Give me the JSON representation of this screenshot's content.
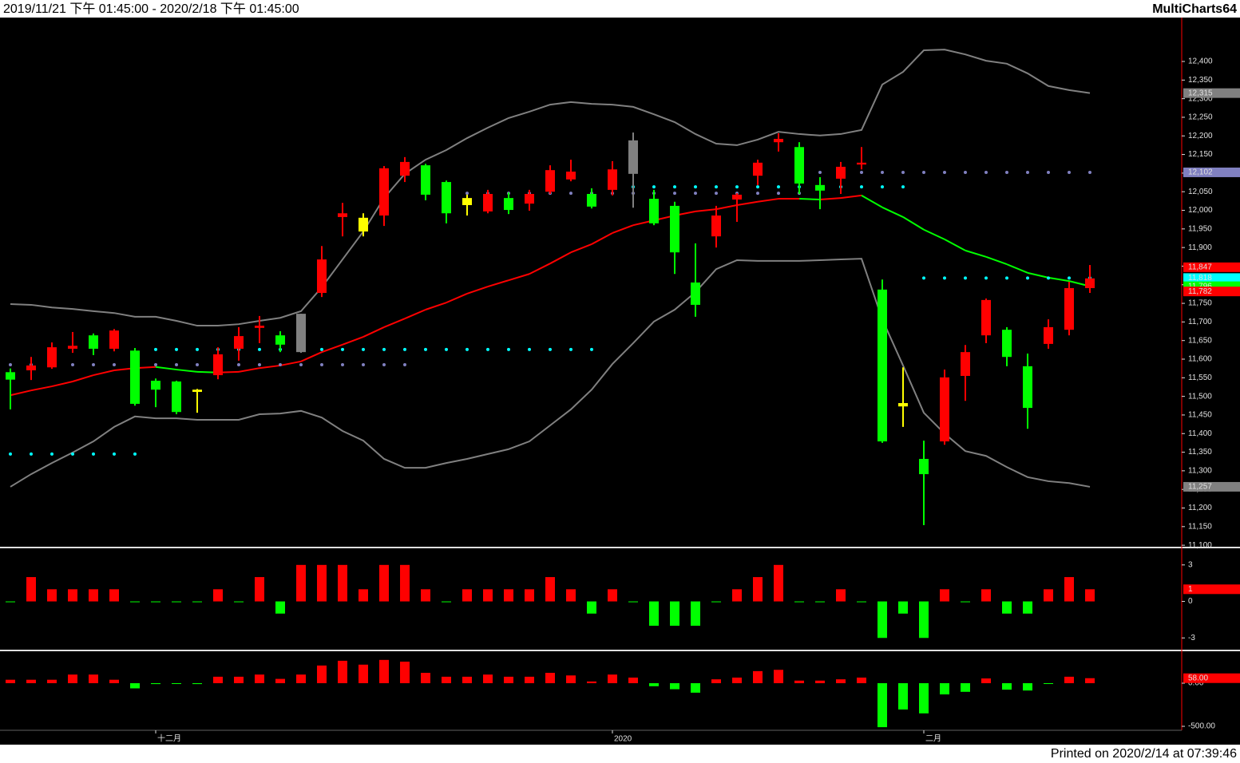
{
  "header": {
    "range": "2019/11/21 下午 01:45:00 - 2020/2/18 下午 01:45:00",
    "brand": "MultiCharts64"
  },
  "footer": {
    "printed": "Printed on 2020/2/14 at 07:39:46"
  },
  "chart_data": [
    {
      "type": "candlestick",
      "categories": [
        null,
        null,
        null,
        null,
        null,
        null,
        null,
        "十二月",
        null,
        null,
        null,
        null,
        null,
        null,
        null,
        null,
        null,
        null,
        null,
        null,
        null,
        null,
        null,
        null,
        null,
        null,
        null,
        null,
        null,
        "2020",
        null,
        null,
        null,
        null,
        null,
        null,
        null,
        null,
        null,
        null,
        null,
        null,
        null,
        null,
        "二月",
        null,
        null,
        null,
        null,
        null,
        null,
        null,
        null
      ],
      "open": [
        11565,
        11570,
        11578,
        11628,
        11664,
        11628,
        11623,
        11542,
        11540,
        11518,
        11557,
        11628,
        11684,
        11664,
        11722,
        11778,
        11982,
        11980,
        11986,
        12093,
        12121,
        12076,
        12033,
        11997,
        12033,
        12018,
        12050,
        12083,
        12044,
        12055,
        12188,
        12031,
        12012,
        11806,
        11930,
        12029,
        12093,
        12183,
        12170,
        12068,
        12085,
        12123,
        11787,
        11482,
        11332,
        11379,
        11555,
        11664,
        11679,
        11581,
        11641,
        11679,
        11791
      ],
      "high": [
        11575,
        11606,
        11645,
        11673,
        11669,
        11681,
        11630,
        11548,
        11542,
        11520,
        11632,
        11686,
        11716,
        11675,
        11722,
        11904,
        12020,
        11992,
        12119,
        12143,
        12125,
        12080,
        12042,
        12055,
        12048,
        12055,
        12121,
        12136,
        12059,
        12132,
        12209,
        12055,
        12023,
        11911,
        12012,
        12046,
        12136,
        12207,
        12183,
        12089,
        12130,
        12170,
        11814,
        11578,
        11381,
        11572,
        11638,
        11763,
        11686,
        11615,
        11707,
        11808,
        11853
      ],
      "low": [
        11465,
        11544,
        11574,
        11617,
        11611,
        11621,
        11475,
        11471,
        11452,
        11456,
        11546,
        11596,
        11643,
        11619,
        11617,
        11767,
        11930,
        11930,
        11958,
        12076,
        12027,
        11965,
        11986,
        11992,
        11990,
        11999,
        12044,
        12078,
        12005,
        12040,
        12007,
        11960,
        11829,
        11714,
        11900,
        11969,
        12068,
        12158,
        12044,
        12003,
        12044,
        12110,
        11375,
        11418,
        11154,
        11370,
        11488,
        11643,
        11581,
        11413,
        11628,
        11664,
        11778
      ],
      "close": [
        11545,
        11583,
        11632,
        11636,
        11628,
        11677,
        11480,
        11518,
        11458,
        11512,
        11613,
        11662,
        11690,
        11639,
        11619,
        11868,
        11992,
        11943,
        12113,
        12130,
        12042,
        11992,
        12014,
        12044,
        12001,
        12044,
        12108,
        12104,
        12010,
        12110,
        12098,
        11965,
        11887,
        11746,
        11986,
        12042,
        12128,
        12192,
        12072,
        12053,
        12117,
        12128,
        11379,
        11473,
        11291,
        11551,
        11619,
        11759,
        11606,
        11469,
        11686,
        11791,
        11817
      ],
      "candle_colors": [
        "#00ff00",
        "#ff0000",
        "#ff0000",
        "#ff0000",
        "#00ff00",
        "#ff0000",
        "#00ff00",
        "#00ff00",
        "#00ff00",
        "#ffff00",
        "#ff0000",
        "#ff0000",
        "#ff0000",
        "#00ff00",
        "#808080",
        "#ff0000",
        "#ff0000",
        "#ffff00",
        "#ff0000",
        "#ff0000",
        "#00ff00",
        "#00ff00",
        "#ffff00",
        "#ff0000",
        "#00ff00",
        "#ff0000",
        "#ff0000",
        "#ff0000",
        "#00ff00",
        "#ff0000",
        "#808080",
        "#00ff00",
        "#00ff00",
        "#00ff00",
        "#ff0000",
        "#ff0000",
        "#ff0000",
        "#ff0000",
        "#00ff00",
        "#00ff00",
        "#ff0000",
        "#ff0000",
        "#00ff00",
        "#ffff00",
        "#00ff00",
        "#ff0000",
        "#ff0000",
        "#ff0000",
        "#00ff00",
        "#00ff00",
        "#ff0000",
        "#ff0000",
        "#ff0000"
      ],
      "bands": [
        {
          "color": "#808080",
          "values": [
            11748,
            11746,
            11739,
            11735,
            11729,
            11724,
            11714,
            11714,
            11703,
            11690,
            11690,
            11694,
            11703,
            11711,
            11729,
            11793,
            11868,
            11943,
            12033,
            12098,
            12136,
            12162,
            12194,
            12222,
            12248,
            12265,
            12284,
            12291,
            12286,
            12284,
            12278,
            12258,
            12237,
            12205,
            12179,
            12175,
            12190,
            12211,
            12205,
            12201,
            12205,
            12216,
            12338,
            12372,
            12430,
            12432,
            12419,
            12402,
            12394,
            12368,
            12334,
            12323,
            12315
          ]
        },
        {
          "color": "#808080",
          "values": [
            11257,
            11291,
            11321,
            11349,
            11379,
            11418,
            11446,
            11441,
            11441,
            11437,
            11437,
            11437,
            11452,
            11454,
            11461,
            11443,
            11407,
            11381,
            11332,
            11308,
            11308,
            11321,
            11332,
            11345,
            11358,
            11379,
            11422,
            11465,
            11518,
            11587,
            11643,
            11701,
            11733,
            11780,
            11842,
            11866,
            11864,
            11864,
            11864,
            11866,
            11868,
            11870,
            11707,
            11583,
            11456,
            11400,
            11353,
            11340,
            11310,
            11283,
            11272,
            11267,
            11257
          ]
        }
      ],
      "ma": {
        "rising_color": "#ff0000",
        "falling_color": "#00ff00",
        "values": [
          11503,
          11516,
          11527,
          11540,
          11557,
          11570,
          11576,
          11579,
          11572,
          11566,
          11564,
          11566,
          11576,
          11583,
          11594,
          11619,
          11639,
          11660,
          11686,
          11709,
          11733,
          11752,
          11776,
          11795,
          11812,
          11829,
          11857,
          11887,
          11909,
          11939,
          11960,
          11973,
          11986,
          11997,
          12003,
          12014,
          12023,
          12031,
          12031,
          12029,
          12033,
          12040,
          12008,
          11982,
          11948,
          11922,
          11892,
          11875,
          11855,
          11832,
          11819,
          11810,
          11796
        ]
      },
      "dots": [
        {
          "color": "#00ffff",
          "values": [
            11345,
            11345,
            11345,
            11345,
            11345,
            11345,
            11345,
            11626,
            11626,
            11626,
            11626,
            11626,
            11626,
            11626,
            11626,
            11626,
            11626,
            11626,
            11626,
            11626,
            11626,
            11626,
            11626,
            11626,
            11626,
            11626,
            11626,
            11626,
            11626,
            12063,
            12063,
            12063,
            12063,
            12063,
            12063,
            12063,
            12063,
            12063,
            12063,
            12063,
            12063,
            12063,
            12063,
            12063,
            11818,
            11818,
            11818,
            11818,
            11818,
            11818,
            11818,
            11818,
            11818
          ]
        },
        {
          "color": "#8080c0",
          "values": [
            11585,
            11585,
            11585,
            11585,
            11585,
            11585,
            11585,
            11585,
            11585,
            11585,
            11585,
            11585,
            11585,
            11585,
            11585,
            11585,
            11585,
            11585,
            11585,
            11585,
            12046,
            12046,
            12046,
            12046,
            12046,
            12046,
            12046,
            12046,
            12046,
            12046,
            12046,
            12046,
            12046,
            12046,
            12046,
            12046,
            12046,
            12046,
            12046,
            12102,
            12102,
            12102,
            12102,
            12102,
            12102,
            12102,
            12102,
            12102,
            12102,
            12102,
            12102,
            12102,
            12102
          ]
        }
      ],
      "price_markers": [
        {
          "value": 12315,
          "label": "12,315",
          "color": "#808080"
        },
        {
          "value": 12102,
          "label": "12,102",
          "color": "#8080c0"
        },
        {
          "value": 11847,
          "label": "11,847",
          "color": "#ff0000"
        },
        {
          "value": 11818,
          "label": "11,818",
          "color": "#00ffff"
        },
        {
          "value": 11796,
          "label": "11,796",
          "color": "#00ff00"
        },
        {
          "value": 11782,
          "label": "11,782",
          "color": "#ff0000"
        },
        {
          "value": 11257,
          "label": "11,257",
          "color": "#808080"
        }
      ],
      "ylim": [
        11096,
        12518
      ],
      "yticks": [
        {
          "value": 11100,
          "label": "11,100"
        },
        {
          "value": 11150,
          "label": "11,150"
        },
        {
          "value": 11200,
          "label": "11,200"
        },
        {
          "value": 11250,
          "label": "11,250"
        },
        {
          "value": 11300,
          "label": "11,300"
        },
        {
          "value": 11350,
          "label": "11,350"
        },
        {
          "value": 11400,
          "label": "11,400"
        },
        {
          "value": 11450,
          "label": "11,450"
        },
        {
          "value": 11500,
          "label": "11,500"
        },
        {
          "value": 11550,
          "label": "11,550"
        },
        {
          "value": 11600,
          "label": "11,600"
        },
        {
          "value": 11650,
          "label": "11,650"
        },
        {
          "value": 11700,
          "label": "11,700"
        },
        {
          "value": 11750,
          "label": "11,750"
        },
        {
          "value": 11800,
          "label": "11,800"
        },
        {
          "value": 11850,
          "label": "11,850"
        },
        {
          "value": 11900,
          "label": "11,900"
        },
        {
          "value": 11950,
          "label": "11,950"
        },
        {
          "value": 12000,
          "label": "12,000"
        },
        {
          "value": 12050,
          "label": "12,050"
        },
        {
          "value": 12100,
          "label": "12,100"
        },
        {
          "value": 12150,
          "label": "12,150"
        },
        {
          "value": 12200,
          "label": "12,200"
        },
        {
          "value": 12250,
          "label": "12,250"
        },
        {
          "value": 12300,
          "label": "12,300"
        },
        {
          "value": 12350,
          "label": "12,350"
        },
        {
          "value": 12400,
          "label": "12,400"
        }
      ]
    },
    {
      "type": "bar",
      "up_color": "#ff0000",
      "down_color": "#00ff00",
      "values": [
        0,
        2,
        1,
        1,
        1,
        1,
        0,
        0,
        0,
        0,
        1,
        0,
        2,
        -1,
        3,
        3,
        3,
        1,
        3,
        3,
        1,
        0,
        1,
        1,
        1,
        1,
        2,
        1,
        -1,
        1,
        0,
        -2,
        -2,
        -2,
        0,
        1,
        2,
        3,
        0,
        0,
        1,
        0,
        -3,
        -1,
        -3,
        1,
        0,
        1,
        -1,
        -1,
        1,
        2,
        1
      ],
      "markers": [
        {
          "value": 1,
          "label": "1",
          "color": "#ff0000"
        }
      ],
      "ylim": [
        -3.9,
        4.3
      ],
      "yticks": [
        -3,
        0,
        3
      ]
    },
    {
      "type": "bar",
      "up_color": "#ff0000",
      "down_color": "#00ff00",
      "values": [
        40,
        40,
        40,
        100,
        100,
        40,
        -60,
        -10,
        0,
        -10,
        75,
        75,
        100,
        50,
        100,
        205,
        260,
        215,
        270,
        250,
        120,
        75,
        75,
        100,
        75,
        75,
        120,
        90,
        20,
        100,
        65,
        -35,
        -70,
        -110,
        45,
        65,
        140,
        155,
        30,
        30,
        45,
        65,
        -510,
        -305,
        -350,
        -130,
        -100,
        55,
        -75,
        -85,
        0,
        75,
        58
      ],
      "markers": [
        {
          "value": 58,
          "label": "58.00",
          "color": "#ff0000"
        }
      ],
      "ylim": [
        -546,
        361
      ],
      "yticks": [
        {
          "value": 0,
          "label": "0.00"
        },
        {
          "value": -500,
          "label": "-500.00"
        }
      ]
    }
  ]
}
